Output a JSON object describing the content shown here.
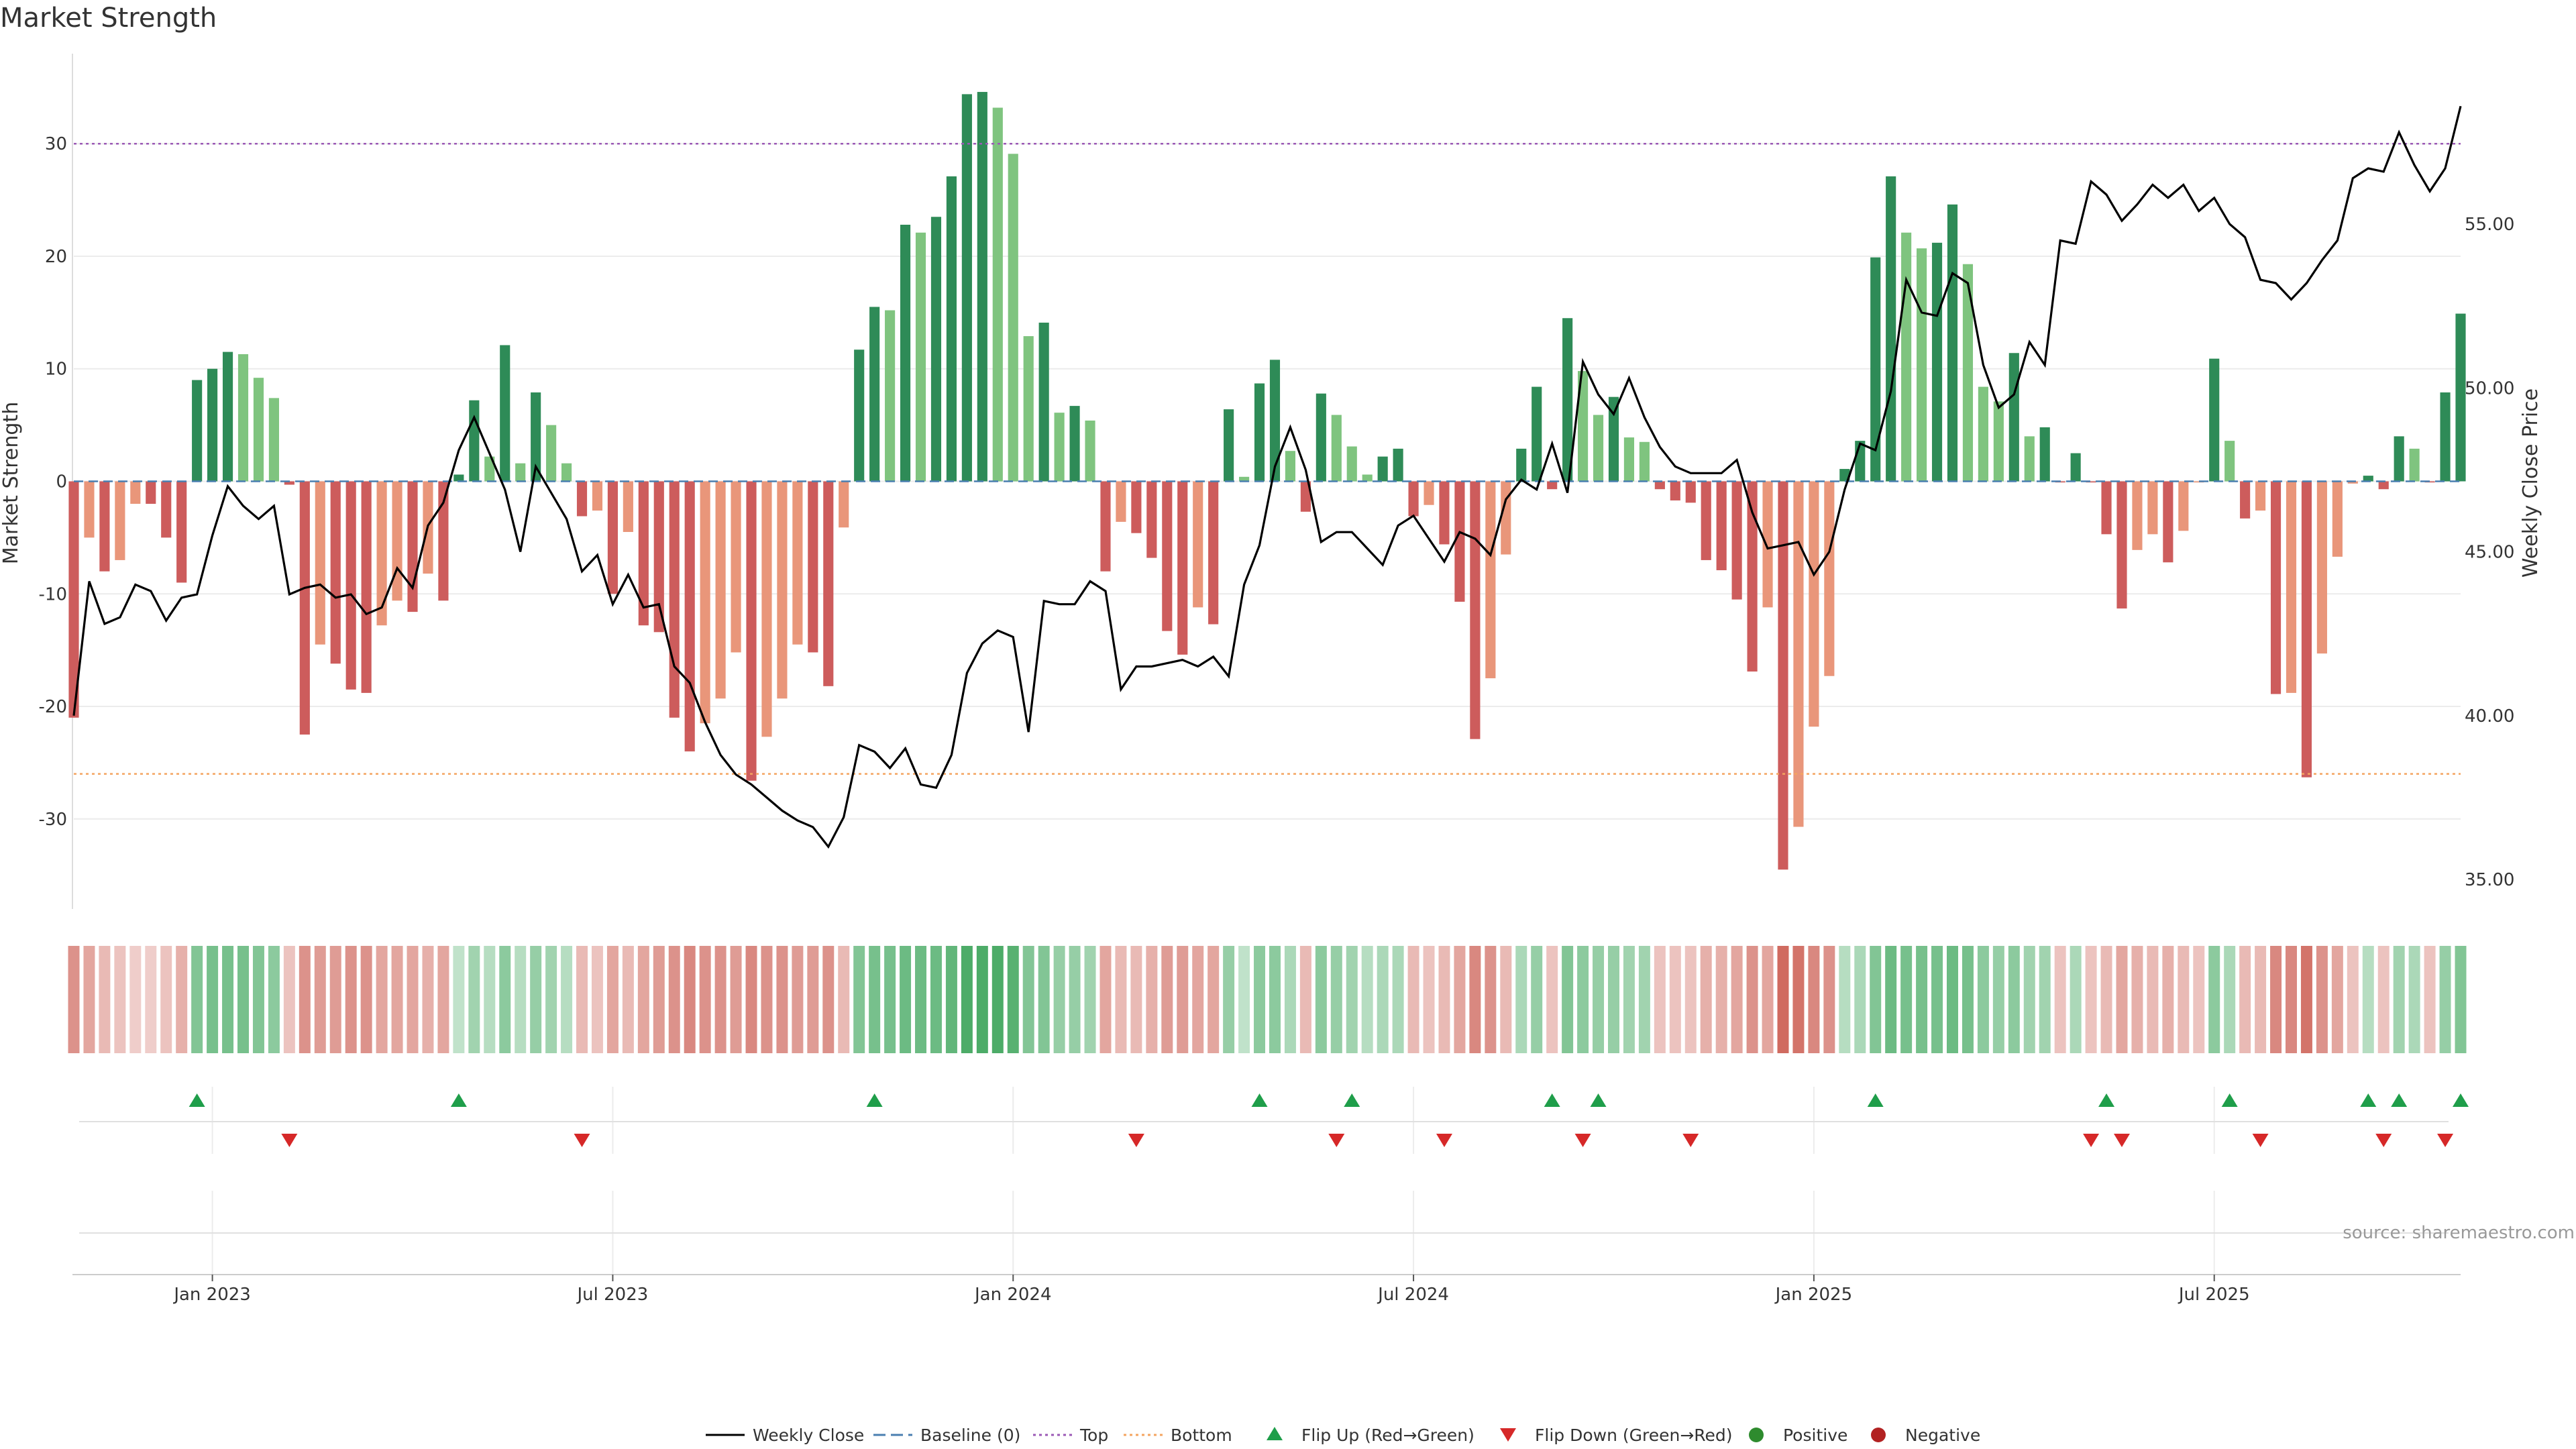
{
  "title": "Market Strength",
  "source": "source: sharemaestro.com",
  "colors": {
    "dark_green": "#2e8b57",
    "light_green": "#7fc47f",
    "dark_red": "#cd5c5c",
    "light_red": "#e9967a",
    "price_line": "#000000",
    "top_line": "#9b59b6",
    "bottom_line": "#f4a460",
    "baseline": "#4a7fb0",
    "flip_up": "#1f9e4a",
    "flip_down": "#d62828"
  },
  "chart_data": {
    "type": "bar",
    "title": "Market Strength",
    "ylabel_left": "Market Strength",
    "ylabel_right": "Weekly Close Price",
    "left_yticks": [
      -30,
      -20,
      -10,
      0,
      10,
      20,
      30
    ],
    "left_ylim": [
      -38,
      38
    ],
    "right_yticks": [
      "35.00",
      "40.00",
      "45.00",
      "50.00",
      "55.00"
    ],
    "right_ylim": [
      34.1,
      60.2
    ],
    "top_level": 30,
    "bottom_level": -26,
    "x_tick_labels": [
      "Jan 2023",
      "Jul 2023",
      "Jan 2024",
      "Jul 2024",
      "Jan 2025",
      "Jul 2025"
    ],
    "x_tick_week_index": [
      9,
      35,
      61,
      87,
      113,
      139
    ],
    "strength": [
      -21,
      -5,
      -8,
      -7,
      -2,
      -2,
      -5,
      -9,
      9,
      10,
      11.5,
      11.3,
      9.2,
      7.4,
      -0.3,
      -22.5,
      -14.5,
      -16.2,
      -18.5,
      -18.8,
      -12.8,
      -10.6,
      -11.6,
      -8.2,
      -10.6,
      0.6,
      7.2,
      2.2,
      12.1,
      1.6,
      7.9,
      5,
      1.6,
      -3.1,
      -2.6,
      -10,
      -4.5,
      -12.8,
      -13.4,
      -21,
      -24,
      -21.5,
      -19.3,
      -15.2,
      -26.6,
      -22.7,
      -19.3,
      -14.5,
      -15.2,
      -18.2,
      -4.1,
      11.7,
      15.5,
      15.2,
      22.8,
      22.1,
      23.5,
      27.1,
      34.4,
      34.6,
      33.2,
      29.1,
      12.9,
      14.1,
      6.1,
      6.7,
      5.4,
      -8,
      -3.6,
      -4.6,
      -6.8,
      -13.3,
      -15.4,
      -11.2,
      -12.7,
      6.4,
      0.4,
      8.7,
      10.8,
      2.7,
      -2.7,
      7.8,
      5.9,
      3.1,
      0.6,
      2.2,
      2.9,
      -3.1,
      -2.1,
      -5.6,
      -10.7,
      -22.9,
      -17.5,
      -6.5,
      2.9,
      8.4,
      -0.7,
      14.5,
      9.8,
      5.9,
      7.5,
      3.9,
      3.5,
      -0.7,
      -1.7,
      -1.9,
      -7,
      -7.9,
      -10.5,
      -16.9,
      -11.2,
      -34.5,
      -30.7,
      -21.8,
      -17.3,
      1.1,
      3.6,
      19.9,
      27.1,
      22.1,
      20.7,
      21.2,
      24.6,
      19.3,
      8.4,
      7.1,
      11.4,
      4,
      4.8,
      -0.1,
      2.5,
      -0.1,
      -4.7,
      -11.3,
      -6.1,
      -4.7,
      -7.2,
      -4.4,
      -0.1,
      10.9,
      3.6,
      -3.3,
      -2.6,
      -18.9,
      -18.8,
      -26.3,
      -15.3,
      -6.7,
      -0.2,
      0.5,
      -0.7,
      4,
      2.9,
      -0.1,
      7.9,
      14.9
    ],
    "weekly_close": [
      40,
      44.1,
      42.8,
      43,
      44,
      43.8,
      42.9,
      43.6,
      43.7,
      45.5,
      47,
      46.4,
      46,
      46.4,
      43.7,
      43.9,
      44,
      43.6,
      43.7,
      43.1,
      43.3,
      44.5,
      43.9,
      45.8,
      46.5,
      48.1,
      49.1,
      48,
      46.9,
      45,
      47.6,
      46.8,
      46,
      44.4,
      44.9,
      43.4,
      44.3,
      43.3,
      43.4,
      41.5,
      41,
      39.8,
      38.8,
      38.2,
      37.9,
      37.5,
      37.1,
      36.8,
      36.6,
      36,
      36.9,
      39.1,
      38.9,
      38.4,
      39,
      37.9,
      37.8,
      38.8,
      41.3,
      42.2,
      42.6,
      42.4,
      39.5,
      43.5,
      43.4,
      43.4,
      44.1,
      43.8,
      40.8,
      41.5,
      41.5,
      41.6,
      41.7,
      41.5,
      41.8,
      41.2,
      44,
      45.2,
      47.6,
      48.8,
      47.5,
      45.3,
      45.6,
      45.6,
      45.1,
      44.6,
      45.8,
      46.1,
      45.4,
      44.7,
      45.6,
      45.4,
      44.9,
      46.6,
      47.2,
      46.9,
      48.3,
      46.8,
      50.8,
      49.8,
      49.2,
      50.3,
      49.1,
      48.2,
      47.6,
      47.4,
      47.4,
      47.4,
      47.8,
      46.2,
      45.1,
      45.2,
      45.3,
      44.3,
      45,
      46.9,
      48.3,
      48.1,
      49.9,
      53.3,
      52.3,
      52.2,
      53.5,
      53.2,
      50.7,
      49.4,
      49.8,
      51.4,
      50.7,
      54.5,
      54.4,
      56.3,
      55.9,
      55.1,
      55.6,
      56.2,
      55.8,
      56.2,
      55.4,
      55.8,
      55,
      54.6,
      53.3,
      53.2,
      52.7,
      53.2,
      53.9,
      54.5,
      56.4,
      56.7,
      56.6,
      57.8,
      56.8,
      56,
      56.7,
      58.6
    ],
    "heat_alpha": [
      0.55,
      0.45,
      0.35,
      0.3,
      0.25,
      0.25,
      0.3,
      0.4,
      0.6,
      0.65,
      0.65,
      0.65,
      0.6,
      0.55,
      0.3,
      0.55,
      0.5,
      0.5,
      0.55,
      0.55,
      0.45,
      0.45,
      0.45,
      0.4,
      0.45,
      0.3,
      0.45,
      0.35,
      0.55,
      0.35,
      0.5,
      0.45,
      0.35,
      0.35,
      0.3,
      0.45,
      0.35,
      0.45,
      0.5,
      0.55,
      0.6,
      0.55,
      0.55,
      0.5,
      0.6,
      0.55,
      0.55,
      0.5,
      0.5,
      0.55,
      0.35,
      0.6,
      0.65,
      0.65,
      0.7,
      0.7,
      0.7,
      0.75,
      0.85,
      0.85,
      0.85,
      0.8,
      0.6,
      0.6,
      0.5,
      0.5,
      0.45,
      0.45,
      0.35,
      0.35,
      0.4,
      0.5,
      0.5,
      0.45,
      0.45,
      0.5,
      0.3,
      0.55,
      0.55,
      0.4,
      0.35,
      0.55,
      0.5,
      0.45,
      0.35,
      0.4,
      0.4,
      0.35,
      0.3,
      0.35,
      0.45,
      0.6,
      0.55,
      0.35,
      0.4,
      0.5,
      0.3,
      0.6,
      0.55,
      0.5,
      0.5,
      0.45,
      0.45,
      0.3,
      0.3,
      0.3,
      0.4,
      0.4,
      0.45,
      0.55,
      0.45,
      0.75,
      0.7,
      0.6,
      0.55,
      0.35,
      0.4,
      0.6,
      0.7,
      0.65,
      0.65,
      0.65,
      0.7,
      0.65,
      0.55,
      0.5,
      0.55,
      0.45,
      0.45,
      0.3,
      0.4,
      0.3,
      0.35,
      0.45,
      0.4,
      0.35,
      0.4,
      0.35,
      0.3,
      0.55,
      0.4,
      0.35,
      0.35,
      0.6,
      0.6,
      0.7,
      0.55,
      0.45,
      0.3,
      0.35,
      0.3,
      0.45,
      0.4,
      0.3,
      0.5,
      0.6
    ],
    "flip_up_weeks": [
      8,
      25,
      52,
      77,
      83,
      96,
      99,
      117,
      132,
      140,
      149,
      151,
      155
    ],
    "flip_down_weeks": [
      14,
      33,
      69,
      82,
      89,
      98,
      105,
      131,
      133,
      142,
      150,
      154
    ]
  },
  "legend": [
    {
      "label": "Weekly Close",
      "symbol": "line",
      "color": "#000000"
    },
    {
      "label": "Baseline (0)",
      "symbol": "dash",
      "color": "#4a7fb0"
    },
    {
      "label": "Top",
      "symbol": "dot-line",
      "color": "#9b59b6"
    },
    {
      "label": "Bottom",
      "symbol": "dot-line",
      "color": "#f4a460"
    },
    {
      "label": "Flip Up (Red→Green)",
      "symbol": "triangle-up",
      "color": "#1f9e4a"
    },
    {
      "label": "Flip Down (Green→Red)",
      "symbol": "triangle-down",
      "color": "#d62828"
    },
    {
      "label": "Positive",
      "symbol": "circle",
      "color": "#2e8b2e"
    },
    {
      "label": "Negative",
      "symbol": "circle",
      "color": "#b22222"
    }
  ]
}
